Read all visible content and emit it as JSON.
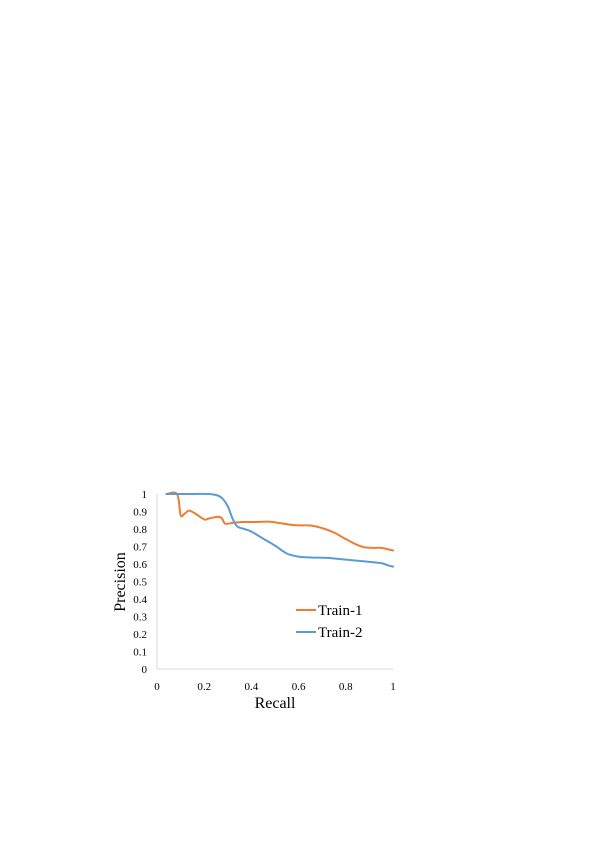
{
  "chart_data": {
    "type": "line",
    "title": "",
    "xlabel": "Recall",
    "ylabel": "Precision",
    "xlim": [
      0,
      1
    ],
    "ylim": [
      0,
      1
    ],
    "x_ticks": [
      "0",
      "0.2",
      "0.4",
      "0.6",
      "0.8",
      "1"
    ],
    "y_ticks": [
      "0",
      "0.1",
      "0.2",
      "0.3",
      "0.4",
      "0.5",
      "0.6",
      "0.7",
      "0.8",
      "0.9",
      "1"
    ],
    "grid": false,
    "legend_placement": "center-right",
    "series": [
      {
        "name": "Train-1",
        "color": "#ED7D31",
        "points": [
          [
            0.04,
            1.0
          ],
          [
            0.085,
            1.0
          ],
          [
            0.1,
            0.88
          ],
          [
            0.115,
            0.885
          ],
          [
            0.135,
            0.905
          ],
          [
            0.16,
            0.89
          ],
          [
            0.2,
            0.855
          ],
          [
            0.22,
            0.86
          ],
          [
            0.26,
            0.87
          ],
          [
            0.275,
            0.86
          ],
          [
            0.29,
            0.83
          ],
          [
            0.32,
            0.835
          ],
          [
            0.36,
            0.84
          ],
          [
            0.42,
            0.84
          ],
          [
            0.47,
            0.842
          ],
          [
            0.5,
            0.838
          ],
          [
            0.58,
            0.822
          ],
          [
            0.65,
            0.82
          ],
          [
            0.7,
            0.805
          ],
          [
            0.75,
            0.78
          ],
          [
            0.8,
            0.742
          ],
          [
            0.85,
            0.708
          ],
          [
            0.88,
            0.695
          ],
          [
            0.92,
            0.692
          ],
          [
            0.95,
            0.692
          ],
          [
            1.0,
            0.677
          ]
        ]
      },
      {
        "name": "Train-2",
        "color": "#5B9BD5",
        "points": [
          [
            0.04,
            1.0
          ],
          [
            0.1,
            1.0
          ],
          [
            0.16,
            1.0
          ],
          [
            0.22,
            1.0
          ],
          [
            0.26,
            0.99
          ],
          [
            0.28,
            0.97
          ],
          [
            0.3,
            0.93
          ],
          [
            0.32,
            0.86
          ],
          [
            0.34,
            0.815
          ],
          [
            0.37,
            0.8
          ],
          [
            0.4,
            0.785
          ],
          [
            0.45,
            0.745
          ],
          [
            0.5,
            0.705
          ],
          [
            0.55,
            0.66
          ],
          [
            0.6,
            0.642
          ],
          [
            0.65,
            0.637
          ],
          [
            0.72,
            0.635
          ],
          [
            0.8,
            0.625
          ],
          [
            0.88,
            0.615
          ],
          [
            0.95,
            0.605
          ],
          [
            0.98,
            0.592
          ],
          [
            1.0,
            0.585
          ]
        ]
      }
    ]
  }
}
